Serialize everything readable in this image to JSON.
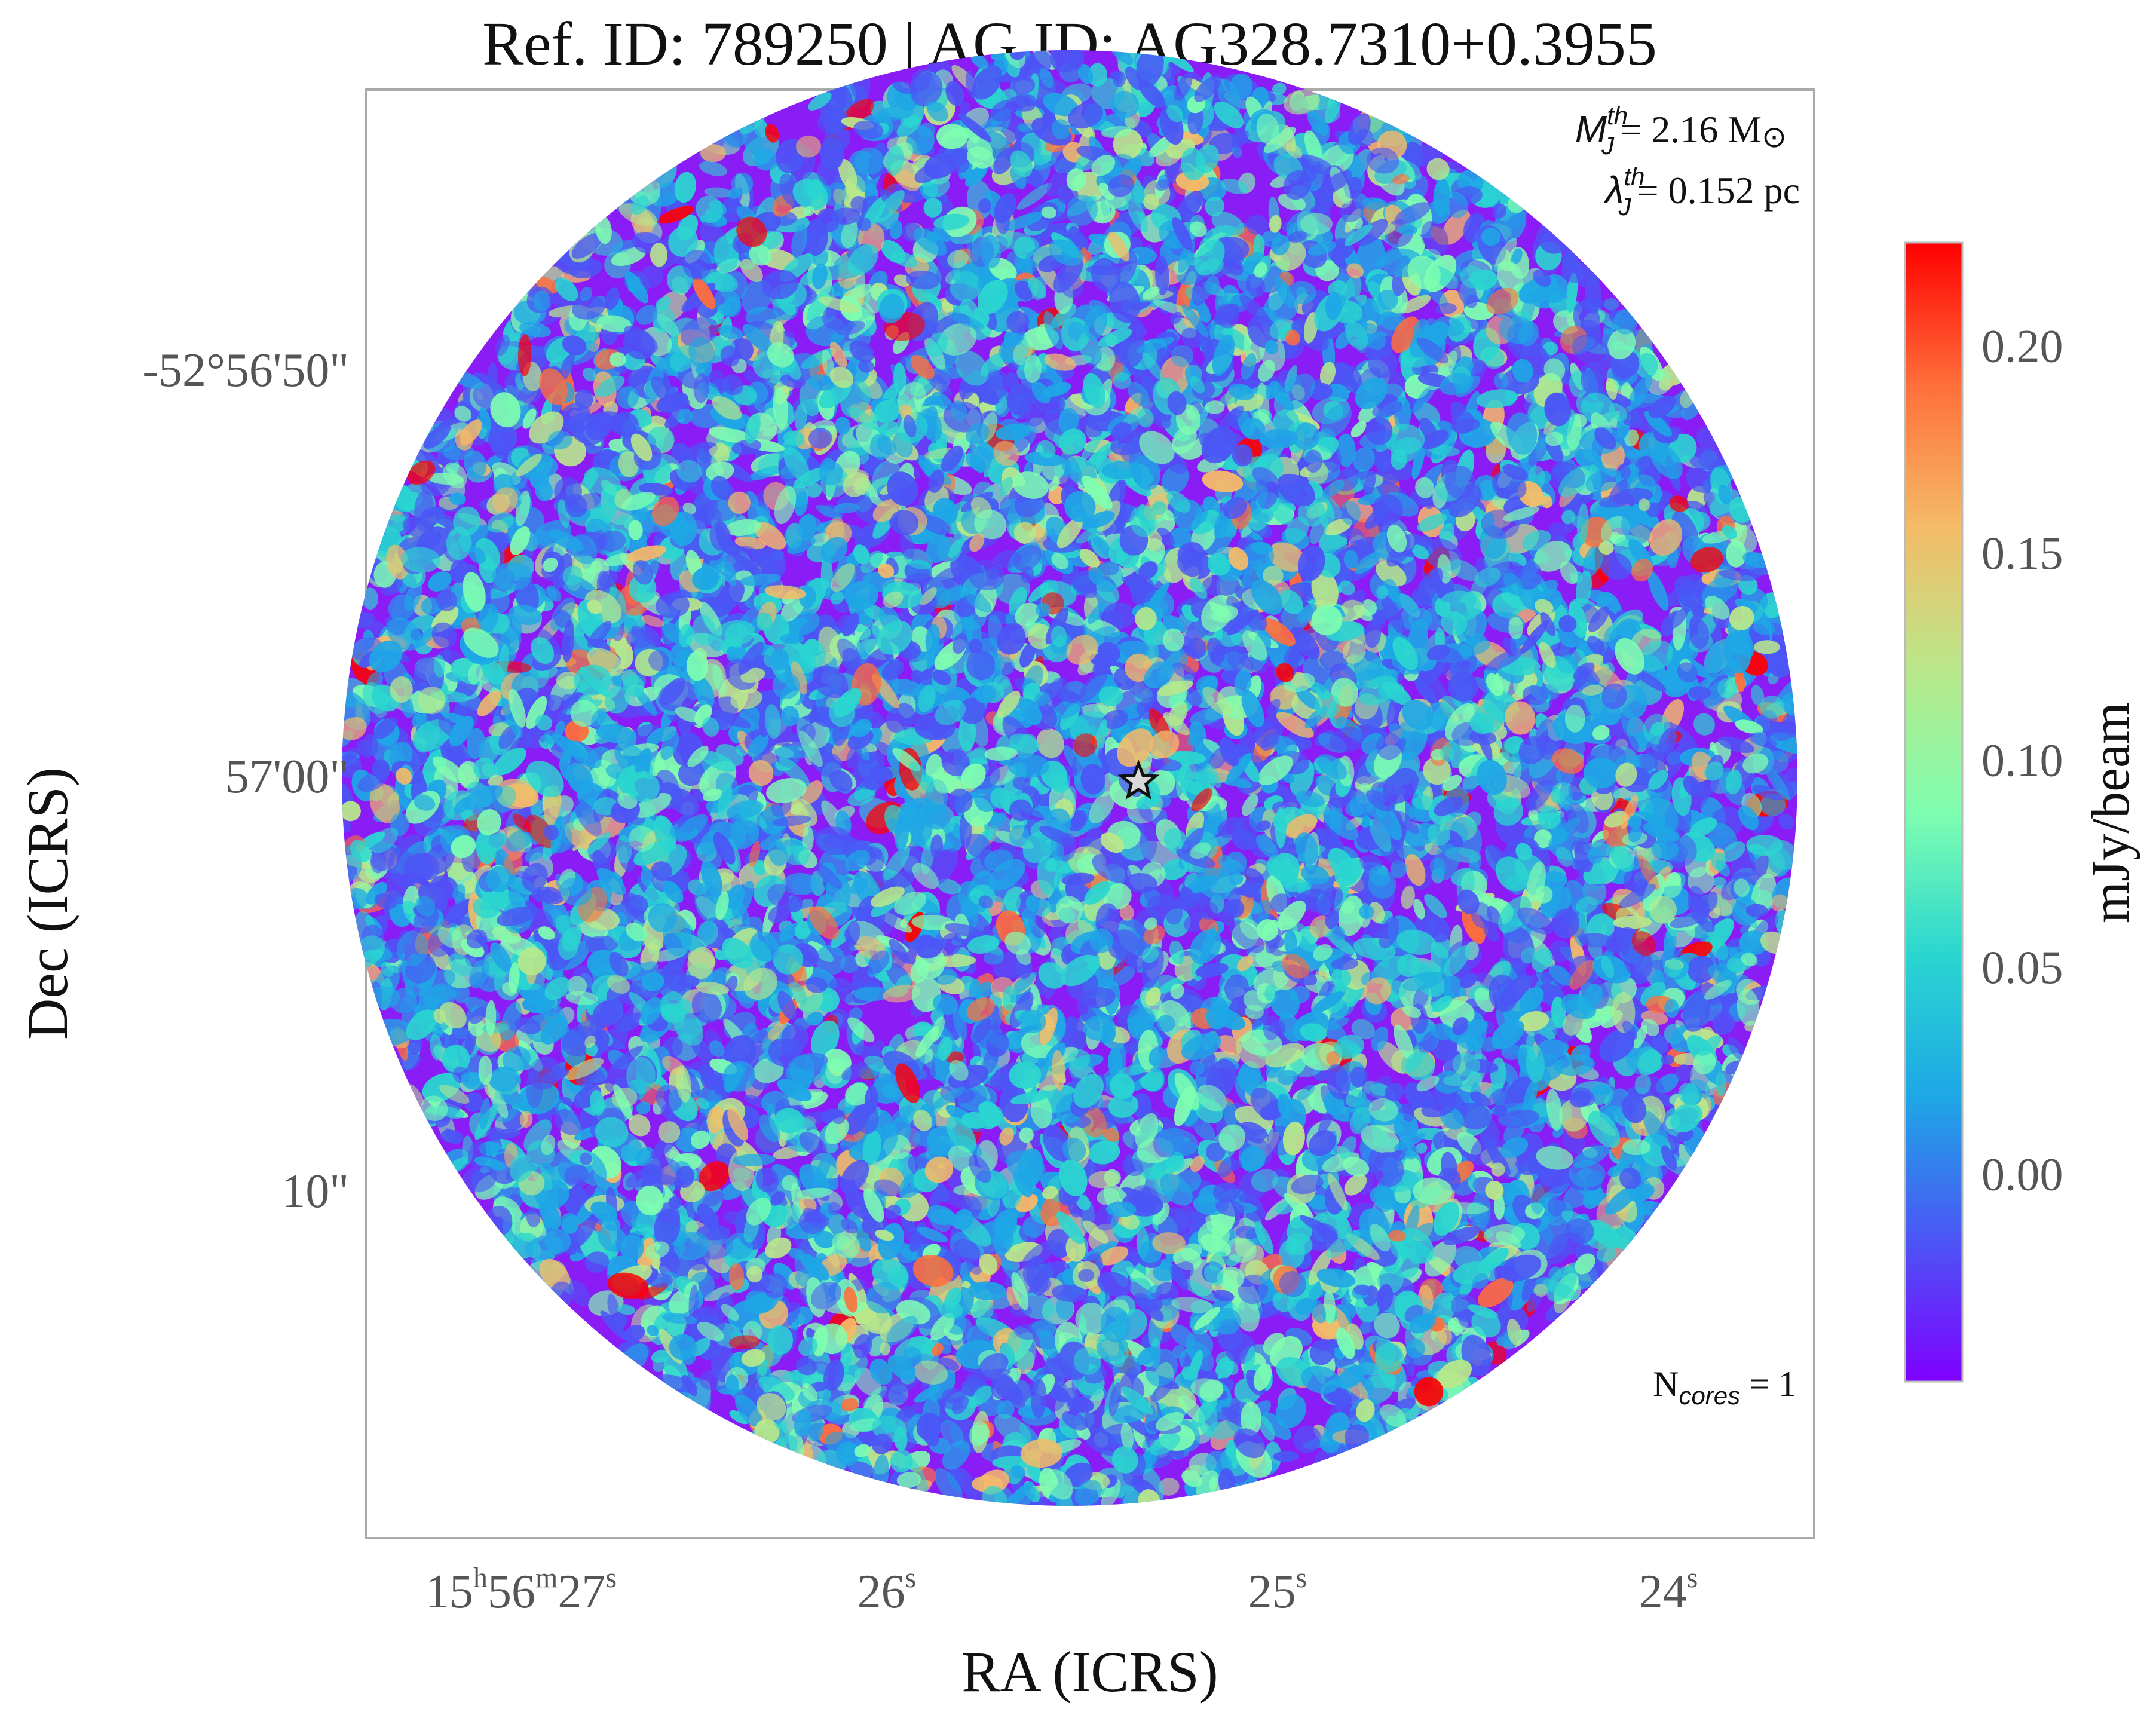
{
  "chart_data": {
    "type": "heatmap",
    "title": "Ref. ID: 789250 | AG ID: AG328.7310+0.3955",
    "xlabel": "RA (ICRS)",
    "ylabel": "Dec (ICRS)",
    "x_ticks": [
      {
        "h": "15",
        "m": "56",
        "s": "27"
      },
      {
        "s": "26"
      },
      {
        "s": "25"
      },
      {
        "s": "24"
      }
    ],
    "y_ticks": [
      "-52°56'50\"",
      "57'00\"",
      "10\""
    ],
    "colorbar": {
      "label": "mJy/beam",
      "range": [
        -0.05,
        0.225
      ],
      "ticks": [
        "0.00",
        "0.05",
        "0.10",
        "0.15",
        "0.20"
      ],
      "tick_values": [
        0.0,
        0.05,
        0.1,
        0.15,
        0.2
      ],
      "colormap": "rainbow",
      "colors": [
        "#7f00ff",
        "#4b56f5",
        "#1ea7e6",
        "#2ad6d0",
        "#7ffeb0",
        "#b9e88a",
        "#f4bb68",
        "#ff6f3b",
        "#ff0000"
      ]
    },
    "annotations": {
      "mj_symbol": "M",
      "mj_sub": "J",
      "mj_sup": "th",
      "mj_value": "= 2.16 M",
      "mj_sun": "⊙",
      "lj_symbol": "λ",
      "lj_sub": "J",
      "lj_sup": "th",
      "lj_value": "= 0.152 pc",
      "ncores_prefix": "N",
      "ncores_sub": "cores",
      "ncores_value": " = 1"
    },
    "markers": [
      {
        "type": "star",
        "label": "",
        "ra_s": 25.42,
        "dec_offset_arcsec": 0.2
      }
    ],
    "field": "circular primary beam, noise-dominated continuum map"
  }
}
